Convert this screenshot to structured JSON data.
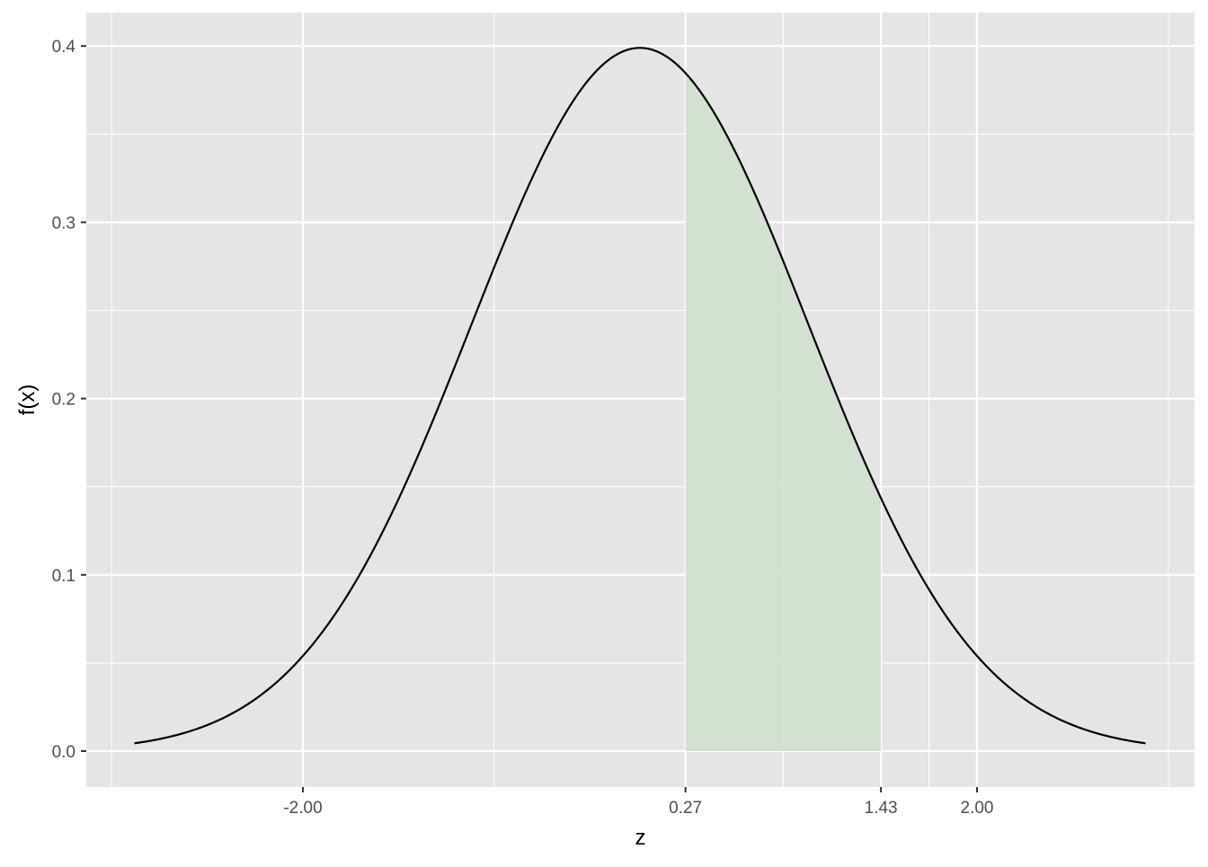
{
  "chart_data": {
    "type": "area",
    "title": "",
    "xlabel": "z",
    "ylabel": "f(x)",
    "distribution": "standard normal density",
    "mean": 0,
    "sd": 1,
    "xlim": [
      -3.0,
      3.0
    ],
    "ylim": [
      0.0,
      0.4
    ],
    "x_ticks": [
      {
        "value": -2.0,
        "label": "-2.00"
      },
      {
        "value": 0.27,
        "label": "0.27"
      },
      {
        "value": 1.43,
        "label": "1.43"
      },
      {
        "value": 2.0,
        "label": "2.00"
      }
    ],
    "x_minor_gridlines": [
      -3.135,
      -0.865,
      0.85,
      1.715,
      2.0,
      3.135
    ],
    "y_ticks": [
      {
        "value": 0.0,
        "label": "0.0"
      },
      {
        "value": 0.1,
        "label": "0.1"
      },
      {
        "value": 0.2,
        "label": "0.2"
      },
      {
        "value": 0.3,
        "label": "0.3"
      },
      {
        "value": 0.4,
        "label": "0.4"
      }
    ],
    "y_minor_gridlines": [
      0.05,
      0.15,
      0.25,
      0.35
    ],
    "shaded_region": {
      "from": 0.27,
      "to": 1.43,
      "color": "#cfe0cd"
    },
    "grid": true,
    "legend": "none",
    "colors": {
      "panel_background": "#e5e5e5",
      "grid": "#ffffff",
      "curve": "#000000",
      "tick_label": "#4d4d4d",
      "axis_title": "#000000"
    }
  }
}
